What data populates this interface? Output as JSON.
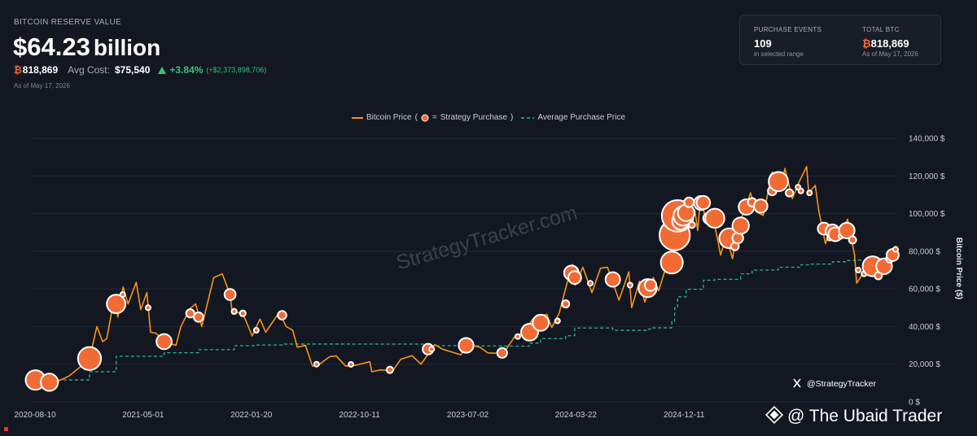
{
  "header": {
    "label": "BITCOIN RESERVE VALUE",
    "value": "$64.23",
    "unit": "billion",
    "btc_symbol": "₿",
    "btc": "818,869",
    "avg_cost_label": "Avg Cost:",
    "avg_cost": "$75,540",
    "change": "+3.84%",
    "change_abs": "(+$2,373,898,706)",
    "as_of": "As of May 17, 2026"
  },
  "stats": [
    {
      "label": "PURCHASE EVENTS",
      "value": "109",
      "sub": "in selected range"
    },
    {
      "label": "TOTAL BTC",
      "symbol": "₿",
      "value": "818,869",
      "sub": "As of May 17, 2026"
    }
  ],
  "chart_data": {
    "type": "line",
    "legend_glue": [
      "(",
      "=",
      ")"
    ],
    "x": [
      "2020-08-10",
      "2020-09-01",
      "2020-09-15",
      "2020-10-01",
      "2020-11-01",
      "2020-12-01",
      "2020-12-21",
      "2021-01-08",
      "2021-01-22",
      "2021-02-01",
      "2021-02-21",
      "2021-02-28",
      "2021-03-13",
      "2021-03-25",
      "2021-04-14",
      "2021-04-25",
      "2021-05-10",
      "2021-05-19",
      "2021-06-01",
      "2021-06-22",
      "2021-07-20",
      "2021-08-01",
      "2021-08-23",
      "2021-09-06",
      "2021-09-21",
      "2021-10-20",
      "2021-11-10",
      "2021-11-29",
      "2021-12-04",
      "2021-12-30",
      "2022-01-22",
      "2022-02-10",
      "2022-02-24",
      "2022-03-29",
      "2022-04-15",
      "2022-05-01",
      "2022-05-12",
      "2022-06-01",
      "2022-06-18",
      "2022-07-01",
      "2022-07-30",
      "2022-08-15",
      "2022-09-07",
      "2022-10-01",
      "2022-11-05",
      "2022-11-10",
      "2022-12-01",
      "2022-12-31",
      "2023-01-20",
      "2023-02-16",
      "2023-03-10",
      "2023-04-13",
      "2023-05-01",
      "2023-06-15",
      "2023-07-01",
      "2023-08-01",
      "2023-08-20",
      "2023-09-10",
      "2023-10-01",
      "2023-10-24",
      "2023-11-15",
      "2023-12-08",
      "2024-01-11",
      "2024-01-23",
      "2024-02-10",
      "2024-02-28",
      "2024-03-14",
      "2024-03-20",
      "2024-04-08",
      "2024-04-30",
      "2024-05-21",
      "2024-06-07",
      "2024-07-05",
      "2024-07-29",
      "2024-08-05",
      "2024-08-24",
      "2024-09-06",
      "2024-09-27",
      "2024-10-10",
      "2024-10-29",
      "2024-11-05",
      "2024-11-13",
      "2024-11-22",
      "2024-12-05",
      "2024-12-17",
      "2024-12-30",
      "2025-01-06",
      "2025-01-13",
      "2025-01-20",
      "2025-02-03",
      "2025-02-20",
      "2025-03-10",
      "2025-03-24",
      "2025-04-08",
      "2025-04-22",
      "2025-05-10",
      "2025-05-22",
      "2025-06-05",
      "2025-06-22",
      "2025-07-14",
      "2025-08-02",
      "2025-08-14",
      "2025-09-01",
      "2025-09-18",
      "2025-10-06",
      "2025-10-11",
      "2025-10-27",
      "2025-11-05",
      "2025-11-21",
      "2025-12-03",
      "2025-12-18",
      "2026-01-14",
      "2026-01-31",
      "2026-02-05",
      "2026-02-20",
      "2026-03-05",
      "2026-03-20",
      "2026-04-14",
      "2026-04-28",
      "2026-05-17"
    ],
    "series": [
      {
        "name": "Bitcoin Price",
        "color": "#f7931a",
        "values": [
          11700,
          11900,
          10700,
          10600,
          13700,
          19000,
          23000,
          40000,
          32000,
          33500,
          57000,
          45000,
          61000,
          52000,
          63500,
          49000,
          58000,
          37000,
          36500,
          32000,
          30000,
          40000,
          49500,
          52000,
          40000,
          66000,
          68000,
          57000,
          48000,
          47000,
          35000,
          44000,
          37000,
          47500,
          40000,
          38000,
          29000,
          30000,
          19000,
          19300,
          24000,
          24400,
          19000,
          19400,
          21300,
          16000,
          17000,
          16500,
          22700,
          24500,
          20000,
          30400,
          28000,
          25000,
          30500,
          29000,
          26000,
          25800,
          27000,
          34500,
          37000,
          44000,
          46500,
          39500,
          47000,
          62000,
          73000,
          62000,
          71500,
          58000,
          71000,
          71500,
          54000,
          69000,
          50000,
          64000,
          53000,
          66000,
          59000,
          72500,
          68000,
          90000,
          99000,
          98000,
          106500,
          92000,
          102000,
          91000,
          108500,
          96000,
          98000,
          78000,
          88000,
          76000,
          93500,
          103000,
          111000,
          101000,
          99000,
          122000,
          112000,
          124000,
          108000,
          117000,
          125000,
          111000,
          115000,
          101000,
          84000,
          93000,
          86000,
          97000,
          78000,
          63000,
          68000,
          72000,
          70000,
          74000,
          76500,
          80000
        ]
      },
      {
        "name": "Average Purchase Price",
        "color": "#2fb58a",
        "dash": true,
        "step": true,
        "x": [
          "2020-08-10",
          "2020-09-14",
          "2020-12-21",
          "2021-02-24",
          "2021-06-21",
          "2021-09-13",
          "2021-12-09",
          "2022-01-31",
          "2022-04-05",
          "2022-09-20",
          "2023-03-27",
          "2023-06-28",
          "2023-09-24",
          "2023-11-30",
          "2023-12-27",
          "2024-02-26",
          "2024-03-19",
          "2024-06-20",
          "2024-09-13",
          "2024-09-20",
          "2024-11-11",
          "2024-11-18",
          "2024-11-25",
          "2024-12-16",
          "2025-01-27",
          "2025-02-24",
          "2025-04-28",
          "2025-05-26",
          "2025-07-29",
          "2025-09-22",
          "2025-10-13",
          "2025-12-08",
          "2026-01-12",
          "2026-02-09",
          "2026-03-16",
          "2026-04-13",
          "2026-05-17"
        ],
        "values": [
          11600,
          11650,
          16000,
          24200,
          26100,
          27700,
          29800,
          30200,
          30700,
          30664,
          29800,
          29700,
          29600,
          31200,
          33600,
          35100,
          39200,
          38000,
          38600,
          39300,
          42700,
          49900,
          55800,
          59800,
          64600,
          65100,
          68000,
          70000,
          71500,
          72800,
          73200,
          74400,
          75100,
          75300,
          76000,
          75800,
          75540
        ]
      }
    ],
    "purchases": {
      "name": "Strategy Purchase",
      "color": "#f26b35",
      "x": [
        "2020-08-11",
        "2020-09-14",
        "2020-12-21",
        "2021-02-24",
        "2021-03-12",
        "2021-05-13",
        "2021-06-21",
        "2021-08-24",
        "2021-09-13",
        "2021-11-29",
        "2021-12-09",
        "2021-12-30",
        "2022-02-01",
        "2022-04-05",
        "2022-06-28",
        "2022-09-20",
        "2022-12-24",
        "2023-03-27",
        "2023-04-05",
        "2023-06-28",
        "2023-09-24",
        "2023-11-01",
        "2023-11-30",
        "2023-12-27",
        "2024-02-06",
        "2024-02-26",
        "2024-03-11",
        "2024-03-19",
        "2024-04-26",
        "2024-06-20",
        "2024-08-01",
        "2024-09-13",
        "2024-09-20",
        "2024-11-11",
        "2024-11-18",
        "2024-11-25",
        "2024-12-02",
        "2024-12-09",
        "2024-12-16",
        "2024-12-23",
        "2024-12-30",
        "2025-01-21",
        "2025-01-27",
        "2025-02-10",
        "2025-02-24",
        "2025-03-31",
        "2025-04-14",
        "2025-04-21",
        "2025-04-28",
        "2025-05-12",
        "2025-05-26",
        "2025-06-16",
        "2025-07-14",
        "2025-07-21",
        "2025-07-29",
        "2025-08-25",
        "2025-09-15",
        "2025-09-22",
        "2025-10-13",
        "2025-11-17",
        "2025-12-01",
        "2025-12-08",
        "2025-12-15",
        "2025-12-29",
        "2026-01-12",
        "2026-01-26",
        "2026-02-09",
        "2026-02-23",
        "2026-03-16",
        "2026-03-30",
        "2026-04-13",
        "2026-04-27",
        "2026-05-04",
        "2026-05-11"
      ],
      "values": [
        11600,
        10400,
        23000,
        52000,
        57000,
        50000,
        32000,
        47000,
        45000,
        57000,
        48000,
        47000,
        38000,
        46000,
        20000,
        19900,
        17000,
        28000,
        28000,
        30000,
        26000,
        34700,
        37000,
        42000,
        43000,
        52000,
        68500,
        66000,
        63000,
        65000,
        62000,
        60400,
        62000,
        74000,
        88600,
        98800,
        95900,
        98800,
        100400,
        106000,
        94000,
        105600,
        105800,
        97500,
        97500,
        86900,
        82600,
        87000,
        93600,
        103500,
        106000,
        104000,
        112000,
        118900,
        117000,
        111000,
        114000,
        112000,
        111000,
        92000,
        87000,
        90600,
        89000,
        88000,
        91000,
        86000,
        70000,
        68000,
        72000,
        67000,
        72000,
        76000,
        78000,
        81000
      ],
      "sizes": [
        21454,
        16796,
        29646,
        19452,
        262,
        271,
        13005,
        3907,
        5050,
        7002,
        1434,
        1914,
        660,
        4167,
        480,
        301,
        2395,
        6455,
        1045,
        12333,
        5445,
        155,
        16130,
        14620,
        850,
        3000,
        12000,
        9245,
        122,
        11931,
        169,
        18300,
        7420,
        27200,
        51780,
        55500,
        15400,
        21550,
        15350,
        5262,
        2138,
        11000,
        10107,
        7633,
        20356,
        22048,
        3459,
        6556,
        15355,
        13390,
        4020,
        10100,
        4225,
        6220,
        21021,
        3081,
        525,
        850,
        220,
        8178,
        130,
        10624,
        10645,
        1229,
        13627,
        2932,
        1142,
        592,
        22337,
        3000,
        13927,
        3273,
        8178,
        535
      ]
    },
    "xlim": [
      "2020-08-10",
      "2026-05-17"
    ],
    "xticks": [
      "2020-08-10",
      "2021-05-01",
      "2022-01-20",
      "2022-10-11",
      "2023-07-02",
      "2024-03-22",
      "2024-12-11"
    ],
    "ylim": [
      0,
      140000
    ],
    "yticks": [
      {
        "value": 0,
        "label": "0 $"
      },
      {
        "value": 20000,
        "label": "20,000 $"
      },
      {
        "value": 40000,
        "label": "40,000 $"
      },
      {
        "value": 60000,
        "label": "60,000 $"
      },
      {
        "value": 80000,
        "label": "80,000 $"
      },
      {
        "value": 100000,
        "label": "100,000 $"
      },
      {
        "value": 120000,
        "label": "120,000 $"
      },
      {
        "value": 140000,
        "label": "140,000 $"
      }
    ],
    "y_label": "Bitcoin Price ($)",
    "grid": true,
    "watermark": "StrategyTracker.com",
    "handle": "@StrategyTracker"
  },
  "footer": "@ The Ubaid Trader"
}
